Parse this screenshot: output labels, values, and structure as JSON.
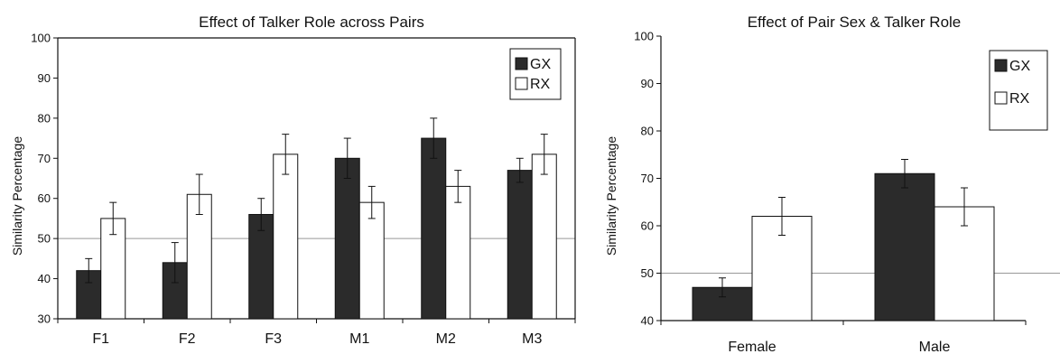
{
  "chart_data": [
    {
      "type": "bar",
      "title": "Effect of Talker Role across Pairs",
      "xlabel": "",
      "ylabel": "Similarity Percentage",
      "ylim": [
        30,
        100
      ],
      "yticks": [
        30,
        40,
        50,
        60,
        70,
        80,
        90,
        100
      ],
      "reference_line": 50,
      "categories": [
        "F1",
        "F2",
        "F3",
        "M1",
        "M2",
        "M3"
      ],
      "series": [
        {
          "name": "GX",
          "color": "#2b2b2b",
          "values": [
            42,
            44,
            56,
            70,
            75,
            67
          ],
          "errors": [
            3,
            5,
            4,
            5,
            5,
            3
          ]
        },
        {
          "name": "RX",
          "color": "#ffffff",
          "values": [
            55,
            61,
            71,
            59,
            63,
            71
          ],
          "errors": [
            4,
            5,
            5,
            4,
            4,
            5
          ]
        }
      ],
      "legend": "top-right",
      "grid": false
    },
    {
      "type": "bar",
      "title": "Effect of Pair Sex & Talker Role",
      "xlabel": "",
      "ylabel": "Similarity Percentage",
      "ylim": [
        40,
        100
      ],
      "yticks": [
        40,
        50,
        60,
        70,
        80,
        90,
        100
      ],
      "reference_line": 50,
      "categories": [
        "Female",
        "Male"
      ],
      "series": [
        {
          "name": "GX",
          "color": "#2b2b2b",
          "values": [
            47,
            71
          ],
          "errors": [
            2,
            3
          ]
        },
        {
          "name": "RX",
          "color": "#ffffff",
          "values": [
            62,
            64
          ],
          "errors": [
            4,
            4
          ]
        }
      ],
      "legend": "top-right",
      "grid": false
    }
  ]
}
